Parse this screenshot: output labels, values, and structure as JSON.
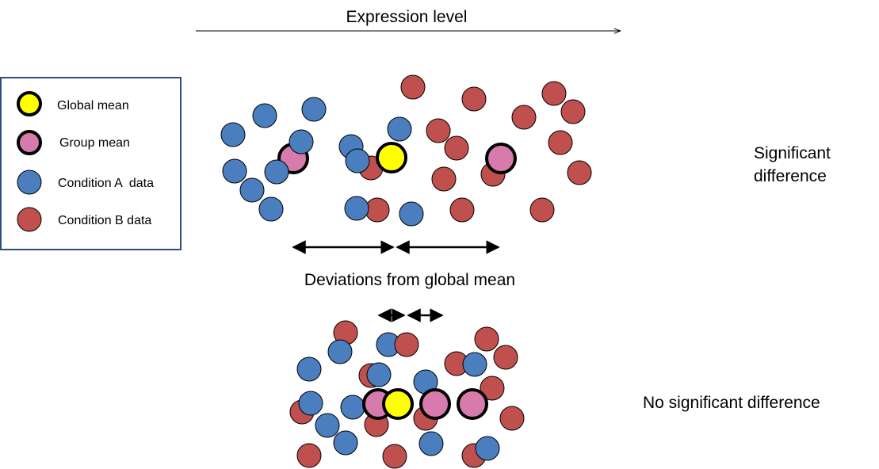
{
  "axis": {
    "label": "Expression level"
  },
  "legend": {
    "items": [
      {
        "label": "Global mean",
        "kind": "global-mean"
      },
      {
        "label": "Group mean",
        "kind": "group-mean"
      },
      {
        "label": "Condition A  data",
        "kind": "condition-a"
      },
      {
        "label": "Condition B data",
        "kind": "condition-b"
      }
    ]
  },
  "labels": {
    "deviations": "Deviations from global mean",
    "significant_line1": "Significant",
    "significant_line2": "difference",
    "not_significant": "No significant difference"
  },
  "colors": {
    "condition_a": "#4a7ebf",
    "condition_b": "#c0504d",
    "global_mean": "#ffff00",
    "group_mean": "#d67bab",
    "legend_border": "#2e4d7b",
    "outline": "#000000"
  }
}
